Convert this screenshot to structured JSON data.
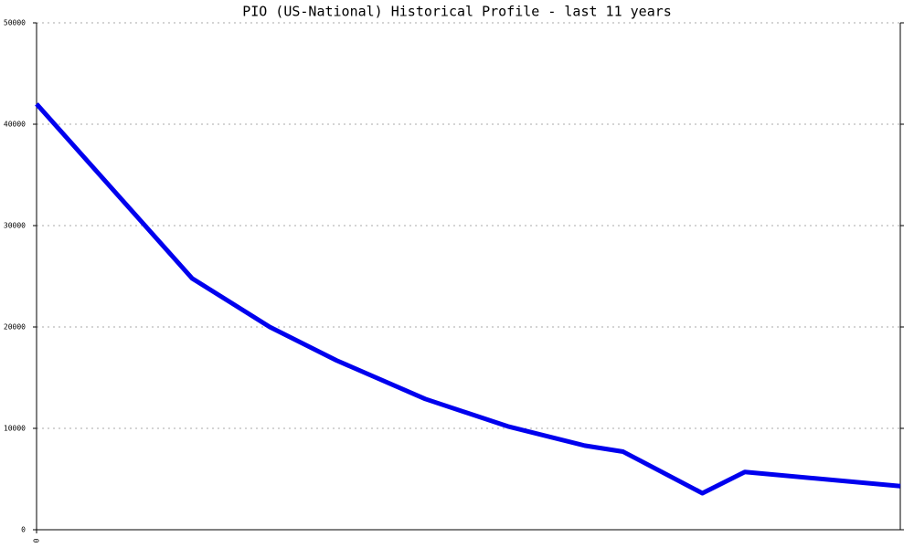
{
  "chart_data": {
    "type": "line",
    "title": "PIO (US-National) Historical Profile - last 11 years",
    "x": [
      0,
      1.98,
      2.97,
      3.82,
      4.95,
      6.0,
      6.98,
      7.47,
      8.48,
      9.02,
      11.0
    ],
    "series": [
      {
        "name": "PIO",
        "color": "#0000ee",
        "values": [
          42000,
          24800,
          20000,
          16700,
          12900,
          10200,
          8300,
          7700,
          3600,
          5700,
          4300
        ]
      }
    ],
    "xlim": [
      0,
      11
    ],
    "xticks": [
      0
    ],
    "ylim": [
      0,
      50000
    ],
    "yticks": [
      0,
      10000,
      20000,
      30000,
      40000,
      50000
    ],
    "grid": true
  }
}
